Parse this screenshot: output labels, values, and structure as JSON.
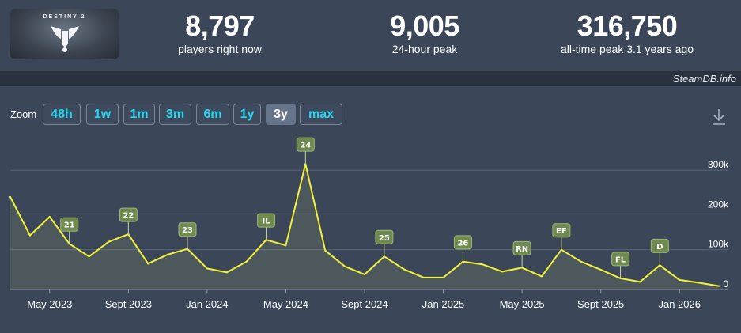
{
  "header": {
    "logo_text": "DESTINY 2",
    "stats": [
      {
        "value": "8,797",
        "label": "players right now"
      },
      {
        "value": "9,005",
        "label": "24-hour peak"
      },
      {
        "value": "316,750",
        "label": "all-time peak 3.1 years ago"
      }
    ]
  },
  "credit": "SteamDB.info",
  "zoom": {
    "label": "Zoom",
    "buttons": [
      "48h",
      "1w",
      "1m",
      "3m",
      "6m",
      "1y",
      "3y",
      "max"
    ],
    "active": "3y"
  },
  "icons": {
    "download": "download-icon"
  },
  "colors": {
    "line": "#f2f23a",
    "badge": "#6f8a4e",
    "accent": "#29d6f2"
  },
  "chart_data": {
    "type": "line",
    "x": [
      "2023-03",
      "2023-04",
      "2023-05",
      "2023-06",
      "2023-07",
      "2023-08",
      "2023-09",
      "2023-10",
      "2023-11",
      "2023-12",
      "2024-01",
      "2024-02",
      "2024-03",
      "2024-04",
      "2024-05",
      "2024-06",
      "2024-07",
      "2024-08",
      "2024-09",
      "2024-10",
      "2024-11",
      "2024-12",
      "2025-01",
      "2025-02",
      "2025-03",
      "2025-04",
      "2025-05",
      "2025-06",
      "2025-07",
      "2025-08",
      "2025-09",
      "2025-10",
      "2025-11",
      "2025-12",
      "2026-01",
      "2026-02",
      "2026-03"
    ],
    "series": [
      {
        "values": [
          233000,
          136000,
          183000,
          115000,
          83000,
          120000,
          139000,
          65000,
          88000,
          102000,
          53000,
          43000,
          70000,
          125000,
          111000,
          316000,
          98000,
          58000,
          38000,
          83000,
          51000,
          30000,
          30000,
          70000,
          63000,
          45000,
          55000,
          33000,
          100000,
          70000,
          50000,
          28000,
          19000,
          61000,
          24000,
          17000,
          8797
        ]
      }
    ],
    "x_tick_labels": [
      "May 2023",
      "Sept 2023",
      "Jan 2024",
      "May 2024",
      "Sept 2024",
      "Jan 2025",
      "May 2025",
      "Sept 2025",
      "Jan 2026"
    ],
    "x_tick_dates": [
      "2023-05",
      "2023-09",
      "2024-01",
      "2024-05",
      "2024-09",
      "2025-01",
      "2025-05",
      "2025-09",
      "2026-01"
    ],
    "y_ticks": [
      0,
      100000,
      200000,
      300000
    ],
    "y_tick_labels": [
      "0",
      "100k",
      "200k",
      "300k"
    ],
    "ylim": [
      0,
      380000
    ],
    "grid": true,
    "annotations": [
      {
        "label": "21",
        "x": "2023-06"
      },
      {
        "label": "22",
        "x": "2023-09"
      },
      {
        "label": "23",
        "x": "2023-12"
      },
      {
        "label": "IL",
        "x": "2024-04"
      },
      {
        "label": "24",
        "x": "2024-06"
      },
      {
        "label": "25",
        "x": "2024-10"
      },
      {
        "label": "26",
        "x": "2025-02"
      },
      {
        "label": "RN",
        "x": "2025-05"
      },
      {
        "label": "EF",
        "x": "2025-07"
      },
      {
        "label": "FL",
        "x": "2025-10"
      },
      {
        "label": "D",
        "x": "2025-12"
      }
    ]
  }
}
